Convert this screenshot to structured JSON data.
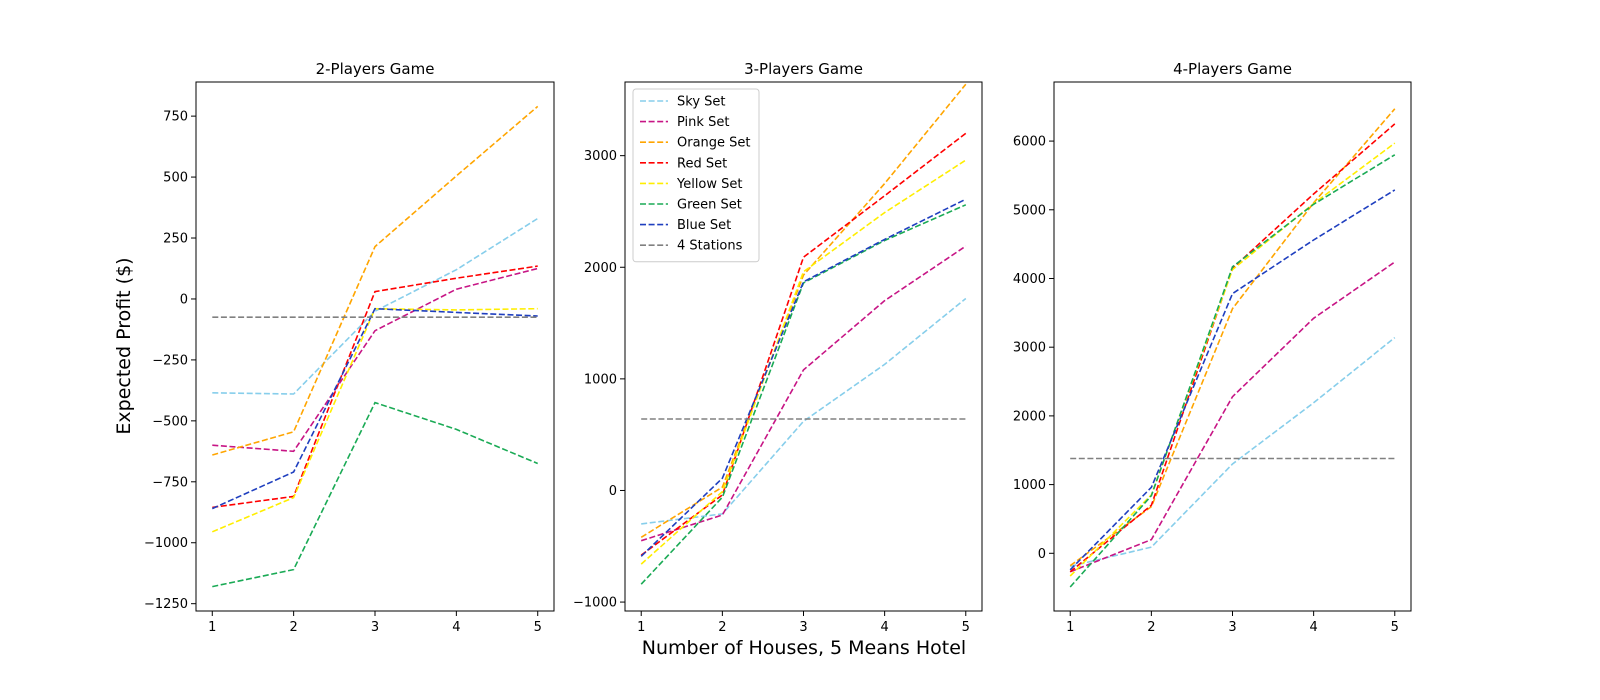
{
  "figure": {
    "xlabel": "Number of Houses, 5 Means Hotel",
    "ylabel": "Expected Profit ($)"
  },
  "series_styles": [
    {
      "name": "Sky Set",
      "color": "#87ceeb"
    },
    {
      "name": "Pink Set",
      "color": "#c71585"
    },
    {
      "name": "Orange Set",
      "color": "#ffa500"
    },
    {
      "name": "Red Set",
      "color": "#ff0000"
    },
    {
      "name": "Yellow Set",
      "color": "#ffee00"
    },
    {
      "name": "Green Set",
      "color": "#1aaa55"
    },
    {
      "name": "Blue Set",
      "color": "#1f3fbf"
    },
    {
      "name": "4 Stations",
      "color": "#808080"
    }
  ],
  "chart_data": [
    {
      "type": "line",
      "title": "2-Players Game",
      "x": [
        1,
        2,
        3,
        4,
        5
      ],
      "xticks": [
        "1",
        "2",
        "3",
        "4",
        "5"
      ],
      "yticks": [
        -1250,
        -1000,
        -750,
        -500,
        -250,
        0,
        250,
        500,
        750
      ],
      "ytick_labels": [
        "−1250",
        "−1000",
        "−750",
        "−500",
        "−250",
        "0",
        "250",
        "500",
        "750"
      ],
      "xlim": [
        0.8,
        5.2
      ],
      "ylim": [
        -1280,
        890
      ],
      "legend": false,
      "series": [
        {
          "name": "Sky Set",
          "values": [
            -385,
            -390,
            -50,
            120,
            330
          ]
        },
        {
          "name": "Pink Set",
          "values": [
            -600,
            -625,
            -130,
            40,
            125
          ]
        },
        {
          "name": "Orange Set",
          "values": [
            -640,
            -545,
            215,
            505,
            790
          ]
        },
        {
          "name": "Red Set",
          "values": [
            -855,
            -810,
            30,
            85,
            135
          ]
        },
        {
          "name": "Yellow Set",
          "values": [
            -955,
            -815,
            -40,
            -45,
            -40
          ]
        },
        {
          "name": "Green Set",
          "values": [
            -1180,
            -1110,
            -425,
            -535,
            -675
          ]
        },
        {
          "name": "Blue Set",
          "values": [
            -860,
            -710,
            -40,
            -55,
            -70
          ]
        },
        {
          "name": "4 Stations",
          "values": [
            -75,
            -75,
            -75,
            -75,
            -75
          ]
        }
      ]
    },
    {
      "type": "line",
      "title": "3-Players Game",
      "x": [
        1,
        2,
        3,
        4,
        5
      ],
      "xticks": [
        "1",
        "2",
        "3",
        "4",
        "5"
      ],
      "yticks": [
        -1000,
        0,
        1000,
        2000,
        3000
      ],
      "ytick_labels": [
        "−1000",
        "0",
        "1000",
        "2000",
        "3000"
      ],
      "xlim": [
        0.8,
        5.2
      ],
      "ylim": [
        -1080,
        3660
      ],
      "legend": true,
      "legend_position": "top-left",
      "series": [
        {
          "name": "Sky Set",
          "values": [
            -300,
            -210,
            620,
            1130,
            1720
          ]
        },
        {
          "name": "Pink Set",
          "values": [
            -450,
            -220,
            1080,
            1700,
            2190
          ]
        },
        {
          "name": "Orange Set",
          "values": [
            -420,
            30,
            1930,
            2750,
            3640
          ]
        },
        {
          "name": "Red Set",
          "values": [
            -580,
            -40,
            2090,
            2640,
            3200
          ]
        },
        {
          "name": "Yellow Set",
          "values": [
            -660,
            -10,
            1960,
            2490,
            2960
          ]
        },
        {
          "name": "Green Set",
          "values": [
            -840,
            -60,
            1860,
            2240,
            2560
          ]
        },
        {
          "name": "Blue Set",
          "values": [
            -590,
            110,
            1870,
            2250,
            2610
          ]
        },
        {
          "name": "4 Stations",
          "values": [
            640,
            640,
            640,
            640,
            640
          ]
        }
      ]
    },
    {
      "type": "line",
      "title": "4-Players Game",
      "x": [
        1,
        2,
        3,
        4,
        5
      ],
      "xticks": [
        "1",
        "2",
        "3",
        "4",
        "5"
      ],
      "yticks": [
        0,
        1000,
        2000,
        3000,
        4000,
        5000,
        6000
      ],
      "ytick_labels": [
        "0",
        "1000",
        "2000",
        "3000",
        "4000",
        "5000",
        "6000"
      ],
      "xlim": [
        0.8,
        5.2
      ],
      "ylim": [
        -840,
        6860
      ],
      "legend": false,
      "series": [
        {
          "name": "Sky Set",
          "values": [
            -190,
            90,
            1300,
            2190,
            3140
          ]
        },
        {
          "name": "Pink Set",
          "values": [
            -270,
            200,
            2280,
            3420,
            4240
          ]
        },
        {
          "name": "Orange Set",
          "values": [
            -180,
            680,
            3560,
            5100,
            6470
          ]
        },
        {
          "name": "Red Set",
          "values": [
            -270,
            700,
            4150,
            5230,
            6250
          ]
        },
        {
          "name": "Yellow Set",
          "values": [
            -330,
            850,
            4130,
            5090,
            5970
          ]
        },
        {
          "name": "Green Set",
          "values": [
            -490,
            840,
            4170,
            5080,
            5800
          ]
        },
        {
          "name": "Blue Set",
          "values": [
            -240,
            960,
            3780,
            4560,
            5290
          ]
        },
        {
          "name": "4 Stations",
          "values": [
            1380,
            1380,
            1380,
            1380,
            1380
          ]
        }
      ]
    }
  ]
}
